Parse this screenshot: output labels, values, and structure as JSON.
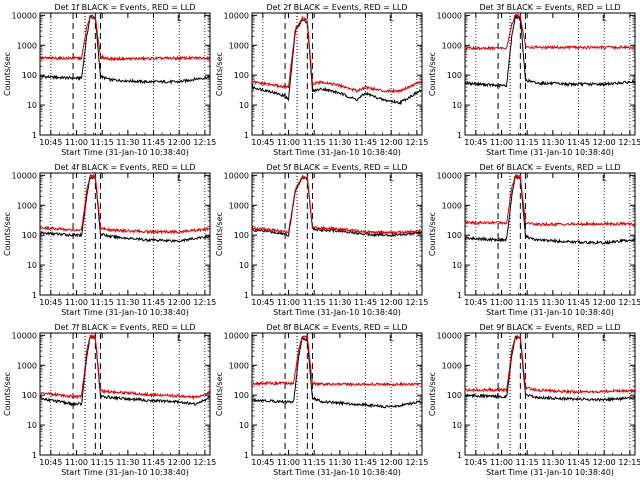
{
  "chart_data": [
    {
      "type": "line",
      "title": "Det 1f BLACK = Events, RED = LLD",
      "xlabel": "Start Time (31-Jan-10 10:38:40)",
      "ylabel": "Counts/sec",
      "x_ticks": [
        "10:45",
        "11:00",
        "11:15",
        "11:30",
        "11:45",
        "12:00",
        "12:15"
      ],
      "y_ticks": [
        "1",
        "10",
        "100",
        "1000",
        "10000"
      ],
      "y_scale": "log",
      "ylim": [
        1,
        12000
      ],
      "marker_label": "L",
      "series": [
        {
          "color": "#000000",
          "x": [
            "10:38",
            "10:58",
            "11:03",
            "11:06",
            "11:08",
            "11:11",
            "11:14",
            "11:20",
            "11:40",
            "12:00",
            "12:10",
            "12:17"
          ],
          "values": [
            90,
            80,
            80,
            2000,
            9000,
            8000,
            90,
            70,
            60,
            60,
            75,
            85
          ]
        },
        {
          "color": "#dd0000",
          "x": [
            "10:38",
            "11:03",
            "11:06",
            "11:08",
            "11:11",
            "11:14",
            "11:20",
            "12:17"
          ],
          "values": [
            370,
            370,
            4000,
            9500,
            9000,
            400,
            350,
            380
          ]
        }
      ]
    },
    {
      "type": "line",
      "title": "Det 2f BLACK = Events, RED = LLD",
      "xlabel": "Start Time (31-Jan-10 10:38:40)",
      "ylabel": "Counts/sec",
      "x_ticks": [
        "10:45",
        "11:00",
        "11:15",
        "11:30",
        "11:45",
        "12:00",
        "12:15"
      ],
      "y_ticks": [
        "1",
        "10",
        "100",
        "1000",
        "10000"
      ],
      "y_scale": "log",
      "ylim": [
        1,
        12000
      ],
      "marker_label": "L",
      "series": [
        {
          "color": "#000000",
          "x": [
            "10:38",
            "10:48",
            "10:58",
            "11:00",
            "11:04",
            "11:08",
            "11:11",
            "11:14",
            "11:20",
            "11:30",
            "11:40",
            "11:45",
            "11:55",
            "12:05",
            "12:17"
          ],
          "values": [
            40,
            30,
            20,
            15,
            3000,
            7000,
            6000,
            30,
            35,
            25,
            15,
            25,
            15,
            12,
            30
          ]
        },
        {
          "color": "#dd0000",
          "x": [
            "10:38",
            "10:48",
            "10:58",
            "11:00",
            "11:04",
            "11:08",
            "11:11",
            "11:14",
            "11:20",
            "11:30",
            "11:40",
            "11:45",
            "11:55",
            "12:05",
            "12:17"
          ],
          "values": [
            60,
            50,
            40,
            40,
            3500,
            8000,
            7000,
            50,
            60,
            45,
            30,
            40,
            30,
            30,
            60
          ]
        }
      ]
    },
    {
      "type": "line",
      "title": "Det 3f BLACK = Events, RED = LLD",
      "xlabel": "Start Time (31-Jan-10 10:38:40)",
      "ylabel": "Counts/sec",
      "x_ticks": [
        "10:45",
        "11:00",
        "11:15",
        "11:30",
        "11:45",
        "12:00",
        "12:15"
      ],
      "y_ticks": [
        "1",
        "10",
        "100",
        "1000",
        "10000"
      ],
      "y_scale": "log",
      "ylim": [
        1,
        12000
      ],
      "marker_label": "L",
      "series": [
        {
          "color": "#000000",
          "x": [
            "10:38",
            "10:58",
            "11:03",
            "11:06",
            "11:08",
            "11:11",
            "11:14",
            "11:20",
            "11:40",
            "12:00",
            "12:17"
          ],
          "values": [
            55,
            45,
            45,
            2000,
            9000,
            8000,
            70,
            55,
            50,
            50,
            60
          ]
        },
        {
          "color": "#dd0000",
          "x": [
            "10:38",
            "11:03",
            "11:06",
            "11:08",
            "11:11",
            "11:14",
            "11:20",
            "12:17"
          ],
          "values": [
            800,
            800,
            5000,
            10000,
            9500,
            900,
            850,
            850
          ]
        }
      ]
    },
    {
      "type": "line",
      "title": "Det 4f BLACK = Events, RED = LLD",
      "xlabel": "Start Time (31-Jan-10 10:38:40)",
      "ylabel": "Counts/sec",
      "x_ticks": [
        "10:45",
        "11:00",
        "11:15",
        "11:30",
        "11:45",
        "12:00",
        "12:15"
      ],
      "y_ticks": [
        "1",
        "10",
        "100",
        "1000",
        "10000"
      ],
      "y_scale": "log",
      "ylim": [
        1,
        12000
      ],
      "marker_label": "L",
      "series": [
        {
          "color": "#000000",
          "x": [
            "10:38",
            "10:58",
            "11:03",
            "11:06",
            "11:08",
            "11:11",
            "11:14",
            "11:20",
            "11:40",
            "12:00",
            "12:17"
          ],
          "values": [
            120,
            100,
            100,
            2000,
            9000,
            8000,
            110,
            90,
            70,
            65,
            90
          ]
        },
        {
          "color": "#dd0000",
          "x": [
            "10:38",
            "10:58",
            "11:03",
            "11:06",
            "11:08",
            "11:11",
            "11:14",
            "11:20",
            "11:40",
            "12:00",
            "12:17"
          ],
          "values": [
            180,
            150,
            150,
            3000,
            9500,
            9000,
            170,
            150,
            130,
            130,
            160
          ]
        }
      ]
    },
    {
      "type": "line",
      "title": "Det 5f BLACK = Events, RED = LLD",
      "xlabel": "Start Time (31-Jan-10 10:38:40)",
      "ylabel": "Counts/sec",
      "x_ticks": [
        "10:45",
        "11:00",
        "11:15",
        "11:30",
        "11:45",
        "12:00",
        "12:15"
      ],
      "y_ticks": [
        "1",
        "10",
        "100",
        "1000",
        "10000"
      ],
      "y_scale": "log",
      "ylim": [
        1,
        12000
      ],
      "marker_label": "L",
      "series": [
        {
          "color": "#000000",
          "x": [
            "10:38",
            "10:50",
            "10:58",
            "11:00",
            "11:04",
            "11:08",
            "11:11",
            "11:14",
            "11:20",
            "11:30",
            "11:45",
            "12:00",
            "12:17"
          ],
          "values": [
            150,
            130,
            110,
            100,
            3000,
            8500,
            8000,
            160,
            150,
            140,
            110,
            100,
            120
          ]
        },
        {
          "color": "#dd0000",
          "x": [
            "10:38",
            "10:50",
            "10:58",
            "11:00",
            "11:04",
            "11:08",
            "11:11",
            "11:14",
            "11:20",
            "11:30",
            "11:45",
            "12:00",
            "12:17"
          ],
          "values": [
            170,
            150,
            130,
            120,
            3500,
            9000,
            8500,
            180,
            170,
            160,
            130,
            120,
            140
          ]
        }
      ]
    },
    {
      "type": "line",
      "title": "Det 6f BLACK = Events, RED = LLD",
      "xlabel": "Start Time (31-Jan-10 10:38:40)",
      "ylabel": "Counts/sec",
      "x_ticks": [
        "10:45",
        "11:00",
        "11:15",
        "11:30",
        "11:45",
        "12:00",
        "12:15"
      ],
      "y_ticks": [
        "1",
        "10",
        "100",
        "1000",
        "10000"
      ],
      "y_scale": "log",
      "ylim": [
        1,
        12000
      ],
      "marker_label": "L",
      "series": [
        {
          "color": "#000000",
          "x": [
            "10:38",
            "10:58",
            "11:03",
            "11:06",
            "11:08",
            "11:11",
            "11:14",
            "11:20",
            "11:40",
            "12:00",
            "12:17"
          ],
          "values": [
            80,
            70,
            70,
            2000,
            9000,
            8000,
            90,
            70,
            60,
            55,
            70
          ]
        },
        {
          "color": "#dd0000",
          "x": [
            "10:38",
            "11:03",
            "11:06",
            "11:08",
            "11:11",
            "11:14",
            "11:20",
            "12:17"
          ],
          "values": [
            260,
            260,
            4000,
            9500,
            9000,
            260,
            230,
            240
          ]
        }
      ]
    },
    {
      "type": "line",
      "title": "Det 7f BLACK = Events, RED = LLD",
      "xlabel": "Start Time (31-Jan-10 10:38:40)",
      "ylabel": "Counts/sec",
      "x_ticks": [
        "10:45",
        "11:00",
        "11:15",
        "11:30",
        "11:45",
        "12:00",
        "12:15"
      ],
      "y_ticks": [
        "1",
        "10",
        "100",
        "1000",
        "10000"
      ],
      "y_scale": "log",
      "ylim": [
        1,
        12000
      ],
      "marker_label": "L",
      "series": [
        {
          "color": "#000000",
          "x": [
            "10:38",
            "10:58",
            "11:03",
            "11:06",
            "11:08",
            "11:11",
            "11:14",
            "11:20",
            "11:30",
            "11:45",
            "12:00",
            "12:10",
            "12:17"
          ],
          "values": [
            80,
            50,
            50,
            2000,
            9000,
            8000,
            90,
            85,
            75,
            65,
            60,
            50,
            80
          ]
        },
        {
          "color": "#dd0000",
          "x": [
            "10:38",
            "10:58",
            "11:03",
            "11:06",
            "11:08",
            "11:11",
            "11:14",
            "11:20",
            "11:30",
            "11:45",
            "12:00",
            "12:10",
            "12:17"
          ],
          "values": [
            120,
            90,
            90,
            3000,
            9500,
            9000,
            140,
            130,
            120,
            100,
            95,
            85,
            120
          ]
        }
      ]
    },
    {
      "type": "line",
      "title": "Det 8f BLACK = Events, RED = LLD",
      "xlabel": "Start Time (31-Jan-10 10:38:40)",
      "ylabel": "Counts/sec",
      "x_ticks": [
        "10:45",
        "11:00",
        "11:15",
        "11:30",
        "11:45",
        "12:00",
        "12:15"
      ],
      "y_ticks": [
        "1",
        "10",
        "100",
        "1000",
        "10000"
      ],
      "y_scale": "log",
      "ylim": [
        1,
        12000
      ],
      "marker_label": "L",
      "series": [
        {
          "color": "#000000",
          "x": [
            "10:38",
            "10:58",
            "11:03",
            "11:06",
            "11:08",
            "11:11",
            "11:14",
            "11:20",
            "11:40",
            "12:00",
            "12:17"
          ],
          "values": [
            70,
            60,
            60,
            2000,
            8000,
            7000,
            80,
            60,
            50,
            40,
            60
          ]
        },
        {
          "color": "#dd0000",
          "x": [
            "10:38",
            "11:03",
            "11:06",
            "11:08",
            "11:11",
            "11:14",
            "11:20",
            "12:17"
          ],
          "values": [
            250,
            250,
            3500,
            9000,
            8500,
            250,
            230,
            230
          ]
        }
      ]
    },
    {
      "type": "line",
      "title": "Det 9f BLACK = Events, RED = LLD",
      "xlabel": "Start Time (31-Jan-10 10:38:40)",
      "ylabel": "Counts/sec",
      "x_ticks": [
        "10:45",
        "11:00",
        "11:15",
        "11:30",
        "11:45",
        "12:00",
        "12:15"
      ],
      "y_ticks": [
        "1",
        "10",
        "100",
        "1000",
        "10000"
      ],
      "y_scale": "log",
      "ylim": [
        1,
        12000
      ],
      "marker_label": "L",
      "series": [
        {
          "color": "#000000",
          "x": [
            "10:38",
            "10:58",
            "11:03",
            "11:06",
            "11:08",
            "11:11",
            "11:14",
            "11:20",
            "11:40",
            "12:00",
            "12:17"
          ],
          "values": [
            100,
            90,
            90,
            2000,
            8500,
            8000,
            100,
            85,
            75,
            70,
            80
          ]
        },
        {
          "color": "#dd0000",
          "x": [
            "10:38",
            "11:03",
            "11:06",
            "11:08",
            "11:11",
            "11:14",
            "11:20",
            "11:40",
            "12:17"
          ],
          "values": [
            150,
            150,
            3000,
            9000,
            8500,
            180,
            150,
            130,
            140
          ]
        }
      ]
    }
  ]
}
